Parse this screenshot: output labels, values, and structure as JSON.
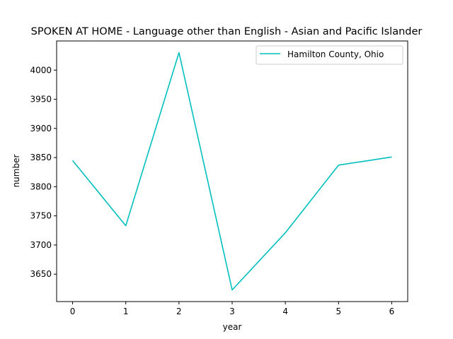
{
  "chart_data": {
    "type": "line",
    "title": "SPOKEN AT HOME - Language other than English - Asian and Pacific Islander",
    "xlabel": "year",
    "ylabel": "number",
    "x": [
      0,
      1,
      2,
      3,
      4,
      5,
      6
    ],
    "series": [
      {
        "name": "Hamilton County, Ohio",
        "color": "#00bfbf",
        "values": [
          3845,
          3733,
          4030,
          3623,
          3721,
          3837,
          3851
        ]
      }
    ],
    "xlim": [
      -0.3,
      6.3
    ],
    "ylim": [
      3603,
      4050
    ],
    "xticks": [
      0,
      1,
      2,
      3,
      4,
      5,
      6
    ],
    "yticks": [
      3650,
      3700,
      3750,
      3800,
      3850,
      3900,
      3950,
      4000
    ],
    "grid": false,
    "legend_position": "top-right"
  }
}
